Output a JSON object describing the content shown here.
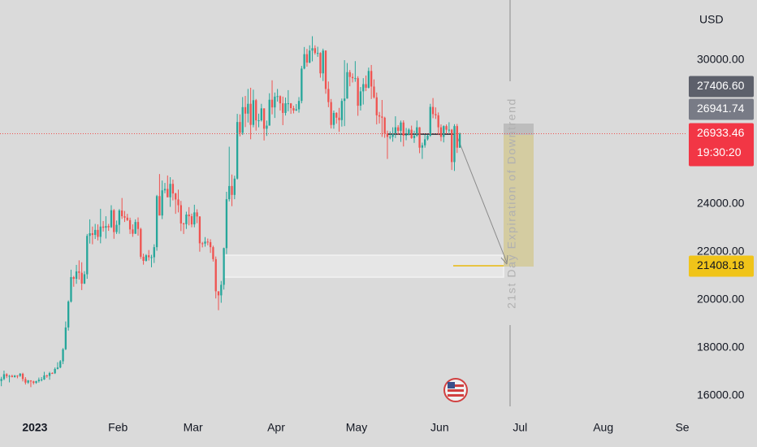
{
  "chart_data": {
    "type": "candlestick",
    "currency": "USD",
    "colors": {
      "up": "#26a69a",
      "down": "#ef5350"
    },
    "xlim": [
      0,
      256
    ],
    "xticks": [
      {
        "value": 13,
        "label": "2023"
      },
      {
        "value": 44,
        "label": "Feb"
      },
      {
        "value": 72,
        "label": "Mar"
      },
      {
        "value": 103,
        "label": "Apr"
      },
      {
        "value": 133,
        "label": "May"
      },
      {
        "value": 164,
        "label": "Jun"
      },
      {
        "value": 194,
        "label": "Jul"
      },
      {
        "value": 225,
        "label": "Aug"
      },
      {
        "value": 256,
        "label": "Se"
      }
    ],
    "ylim": [
      15220,
      32510
    ],
    "yticks": [
      {
        "value": 16000,
        "label": "16000.00"
      },
      {
        "value": 18000,
        "label": "18000.00"
      },
      {
        "value": 20000,
        "label": "20000.00"
      },
      {
        "value": 22000,
        "label": "22000.00"
      },
      {
        "value": 24000,
        "label": "24000.00"
      },
      {
        "value": 30000,
        "label": "30000.00"
      }
    ],
    "last_price": 26933.46,
    "countdown": "19:30:20",
    "price_labels": [
      {
        "value": 27406.6,
        "label": "27406.60"
      },
      26941.74,
      21408.18
    ],
    "annotation": "21st Day Expiration of Downtrend",
    "candles": [
      [
        16620,
        16790,
        16400,
        16700
      ],
      [
        16700,
        17050,
        16650,
        16900
      ],
      [
        16900,
        16940,
        16740,
        16820
      ],
      [
        16820,
        16870,
        16560,
        16830
      ],
      [
        16830,
        16880,
        16770,
        16780
      ],
      [
        16780,
        16870,
        16760,
        16840
      ],
      [
        16840,
        16860,
        16730,
        16830
      ],
      [
        16830,
        16950,
        16790,
        16920
      ],
      [
        16920,
        16960,
        16600,
        16700
      ],
      [
        16700,
        16780,
        16470,
        16550
      ],
      [
        16550,
        16660,
        16500,
        16640
      ],
      [
        16640,
        16650,
        16360,
        16600
      ],
      [
        16600,
        16630,
        16470,
        16540
      ],
      [
        16540,
        16630,
        16500,
        16610
      ],
      [
        16610,
        16760,
        16550,
        16670
      ],
      [
        16670,
        16780,
        16600,
        16680
      ],
      [
        16680,
        17000,
        16660,
        16850
      ],
      [
        16850,
        16880,
        16750,
        16830
      ],
      [
        16830,
        17000,
        16670,
        16950
      ],
      [
        16950,
        16980,
        16910,
        16940
      ],
      [
        16940,
        17180,
        16910,
        17120
      ],
      [
        17120,
        17400,
        17100,
        17180
      ],
      [
        17180,
        17490,
        17150,
        17440
      ],
      [
        17440,
        17990,
        17320,
        17940
      ],
      [
        17940,
        19100,
        17910,
        18850
      ],
      [
        18850,
        19980,
        18720,
        19930
      ],
      [
        19930,
        21260,
        19890,
        20950
      ],
      [
        20950,
        21000,
        20550,
        20880
      ],
      [
        20880,
        21460,
        20670,
        21190
      ],
      [
        21190,
        21650,
        20850,
        21130
      ],
      [
        21130,
        21570,
        20410,
        20680
      ],
      [
        20680,
        21200,
        20660,
        21070
      ],
      [
        21070,
        22750,
        20880,
        22670
      ],
      [
        22670,
        23360,
        22350,
        22780
      ],
      [
        22780,
        23060,
        22320,
        22710
      ],
      [
        22710,
        23170,
        22540,
        22920
      ],
      [
        22920,
        23150,
        22480,
        22630
      ],
      [
        22630,
        23800,
        22360,
        23060
      ],
      [
        23060,
        23290,
        22850,
        23010
      ],
      [
        23010,
        23490,
        22560,
        23080
      ],
      [
        23080,
        23170,
        22880,
        23030
      ],
      [
        23030,
        23950,
        23000,
        23740
      ],
      [
        23740,
        23790,
        22550,
        22830
      ],
      [
        22830,
        23310,
        22750,
        23130
      ],
      [
        23130,
        23790,
        22760,
        23730
      ],
      [
        23730,
        24250,
        23380,
        23490
      ],
      [
        23490,
        23710,
        23250,
        23430
      ],
      [
        23430,
        23590,
        23290,
        23330
      ],
      [
        23330,
        23430,
        22750,
        22940
      ],
      [
        22940,
        23150,
        22630,
        22760
      ],
      [
        22760,
        23360,
        22750,
        23250
      ],
      [
        23250,
        23440,
        22680,
        22960
      ],
      [
        22960,
        23010,
        21710,
        21800
      ],
      [
        21800,
        21930,
        21470,
        21630
      ],
      [
        21630,
        21910,
        21600,
        21860
      ],
      [
        21860,
        22080,
        21640,
        21780
      ],
      [
        21780,
        21880,
        21360,
        21780
      ],
      [
        21780,
        22320,
        21540,
        22200
      ],
      [
        22200,
        24380,
        22050,
        24330
      ],
      [
        24330,
        25250,
        23520,
        23520
      ],
      [
        23520,
        24980,
        23370,
        24570
      ],
      [
        24570,
        24880,
        24450,
        24630
      ],
      [
        24630,
        25190,
        24280,
        24280
      ],
      [
        24280,
        25120,
        23880,
        24840
      ],
      [
        24840,
        25020,
        24150,
        24440
      ],
      [
        24440,
        24470,
        23590,
        24190
      ],
      [
        24190,
        24600,
        23650,
        23950
      ],
      [
        23950,
        24130,
        22870,
        23190
      ],
      [
        23190,
        23220,
        22750,
        23160
      ],
      [
        23160,
        23680,
        22960,
        23560
      ],
      [
        23560,
        23870,
        23110,
        23490
      ],
      [
        23490,
        23600,
        23030,
        23150
      ],
      [
        23150,
        23970,
        23030,
        23650
      ],
      [
        23650,
        23780,
        23200,
        23480
      ],
      [
        23480,
        23490,
        22010,
        22360
      ],
      [
        22360,
        22420,
        22190,
        22350
      ],
      [
        22350,
        22620,
        22220,
        22430
      ],
      [
        22430,
        22560,
        22280,
        22410
      ],
      [
        22410,
        22530,
        21960,
        22200
      ],
      [
        22200,
        22260,
        21600,
        21700
      ],
      [
        21700,
        21810,
        20060,
        20360
      ],
      [
        20360,
        20360,
        19570,
        20190
      ],
      [
        20190,
        20790,
        19880,
        20630
      ],
      [
        20630,
        22180,
        20430,
        22160
      ],
      [
        22160,
        24510,
        21910,
        24200
      ],
      [
        24200,
        26390,
        24110,
        24750
      ],
      [
        24750,
        25230,
        23910,
        24380
      ],
      [
        24380,
        25180,
        24200,
        25060
      ],
      [
        25060,
        27760,
        25020,
        27420
      ],
      [
        27420,
        27740,
        26820,
        26970
      ],
      [
        26970,
        28460,
        26880,
        28040
      ],
      [
        28040,
        28510,
        27210,
        27770
      ],
      [
        27770,
        28800,
        27400,
        28180
      ],
      [
        28180,
        28850,
        26700,
        27300
      ],
      [
        27300,
        28770,
        27200,
        28330
      ],
      [
        28330,
        28380,
        27060,
        27490
      ],
      [
        27490,
        27770,
        27200,
        27490
      ],
      [
        27490,
        28180,
        27440,
        27990
      ],
      [
        27990,
        27990,
        26650,
        27140
      ],
      [
        27140,
        27480,
        26840,
        27270
      ],
      [
        27270,
        28620,
        27270,
        28350
      ],
      [
        28350,
        29160,
        27740,
        28030
      ],
      [
        28030,
        28650,
        27590,
        28480
      ],
      [
        28480,
        28800,
        28270,
        28500
      ],
      [
        28500,
        28530,
        27900,
        28200
      ],
      [
        28200,
        28480,
        27290,
        27800
      ],
      [
        27800,
        28440,
        27690,
        28200
      ],
      [
        28200,
        28750,
        27870,
        28200
      ],
      [
        28200,
        28210,
        27760,
        28000
      ],
      [
        28000,
        28100,
        27780,
        27900
      ],
      [
        27900,
        28170,
        27880,
        27950
      ],
      [
        27950,
        28460,
        27810,
        28300
      ],
      [
        28300,
        29760,
        28200,
        29650
      ],
      [
        29650,
        30550,
        29620,
        30250
      ],
      [
        30250,
        30470,
        29730,
        29900
      ],
      [
        29900,
        30620,
        29870,
        30400
      ],
      [
        30400,
        31000,
        29950,
        30500
      ],
      [
        30500,
        30620,
        30230,
        30300
      ],
      [
        30300,
        30560,
        30140,
        30300
      ],
      [
        30300,
        30330,
        29270,
        29450
      ],
      [
        29450,
        30480,
        29130,
        30400
      ],
      [
        30400,
        30410,
        28600,
        28800
      ],
      [
        28800,
        29110,
        28040,
        28250
      ],
      [
        28250,
        28380,
        27150,
        27300
      ],
      [
        27300,
        27900,
        27140,
        27800
      ],
      [
        27800,
        27830,
        27350,
        27600
      ],
      [
        27600,
        28010,
        27010,
        27500
      ],
      [
        27500,
        28400,
        27230,
        28300
      ],
      [
        28300,
        30000,
        27250,
        28400
      ],
      [
        28400,
        29880,
        28390,
        29500
      ],
      [
        29500,
        29590,
        28910,
        29300
      ],
      [
        29300,
        29450,
        29070,
        29250
      ],
      [
        29250,
        29960,
        29100,
        29250
      ],
      [
        29250,
        29330,
        27680,
        28100
      ],
      [
        28100,
        28880,
        27900,
        28700
      ],
      [
        28700,
        29250,
        28150,
        29000
      ],
      [
        29000,
        29360,
        28710,
        28850
      ],
      [
        28850,
        29690,
        28820,
        29550
      ],
      [
        29550,
        29800,
        28380,
        28900
      ],
      [
        28900,
        29200,
        28400,
        28450
      ],
      [
        28450,
        28650,
        27320,
        27700
      ],
      [
        27700,
        27840,
        27360,
        27650
      ],
      [
        27650,
        28340,
        26800,
        27600
      ],
      [
        27600,
        27640,
        26760,
        26950
      ],
      [
        26950,
        27060,
        25880,
        26800
      ],
      [
        26800,
        27030,
        26700,
        26800
      ],
      [
        26800,
        27200,
        26600,
        26950
      ],
      [
        26950,
        27660,
        26750,
        27200
      ],
      [
        27200,
        27290,
        26880,
        27050
      ],
      [
        27050,
        27480,
        26590,
        27400
      ],
      [
        27400,
        27490,
        26400,
        26850
      ],
      [
        26850,
        27170,
        26660,
        26900
      ],
      [
        26900,
        27160,
        26860,
        27100
      ],
      [
        27100,
        27270,
        26720,
        26750
      ],
      [
        26750,
        27060,
        26550,
        26850
      ],
      [
        26850,
        27480,
        26800,
        27200
      ],
      [
        27200,
        27210,
        26120,
        26350
      ],
      [
        26350,
        26560,
        25880,
        26450
      ],
      [
        26450,
        26900,
        26350,
        26700
      ],
      [
        26700,
        26890,
        26650,
        26850
      ],
      [
        26850,
        28180,
        26800,
        28050
      ],
      [
        28050,
        28420,
        27580,
        27750
      ],
      [
        27750,
        28030,
        27550,
        27700
      ],
      [
        27700,
        27820,
        26880,
        27200
      ],
      [
        27200,
        27320,
        26620,
        26800
      ],
      [
        26800,
        27280,
        26570,
        27250
      ],
      [
        27250,
        27320,
        26940,
        27100
      ],
      [
        27100,
        27410,
        26960,
        27100
      ],
      [
        27100,
        27130,
        25420,
        25750
      ],
      [
        25750,
        27330,
        25380,
        27250
      ],
      [
        27250,
        27340,
        26130,
        26350
      ],
      [
        26350,
        26980,
        26340,
        26933.46
      ]
    ]
  }
}
